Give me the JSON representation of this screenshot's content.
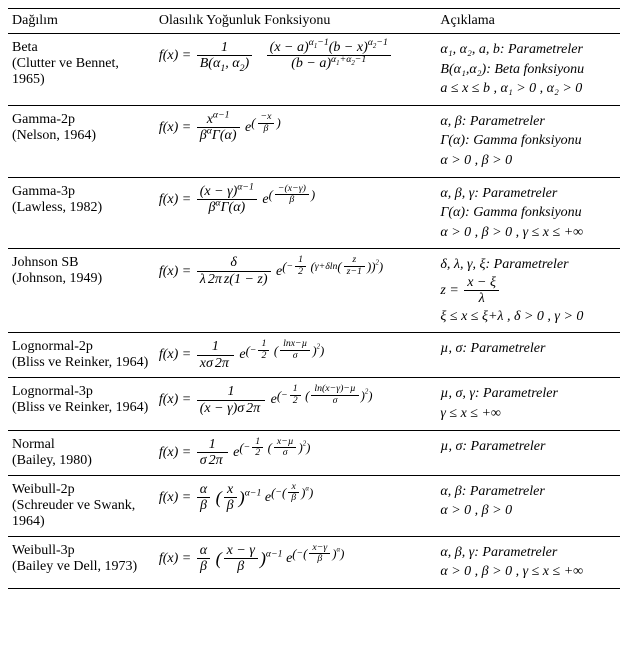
{
  "headers": {
    "dist": "Dağılım",
    "pdf": "Olasılık Yoğunluk Fonksiyonu",
    "note": "Açıklama"
  },
  "rows": [
    {
      "name": "Beta",
      "ref": "(Clutter ve Bennet, 1965)",
      "note1": "α₁, α₂, a, b: Parametreler",
      "note2": "B(α₁,α₂): Beta fonksiyonu",
      "note3": "a ≤ x ≤ b , α₁ > 0 , α₂ > 0"
    },
    {
      "name": "Gamma-2p",
      "ref": "(Nelson, 1964)",
      "note1": "α, β: Parametreler",
      "note2": "Γ(α): Gamma fonksiyonu",
      "note3": "α > 0 , β > 0"
    },
    {
      "name": "Gamma-3p",
      "ref": "(Lawless, 1982)",
      "note1": "α, β, γ: Parametreler",
      "note2": "Γ(α): Gamma fonksiyonu",
      "note3": "α > 0 , β > 0 , γ ≤ x ≤ +∞"
    },
    {
      "name": "Johnson SB",
      "ref": "(Johnson, 1949)",
      "note1": "δ, λ, γ, ξ: Parametreler",
      "note2_prefix": "z = ",
      "note2_num": "x − ξ",
      "note2_den": "λ",
      "note3": "ξ ≤ x ≤ ξ+λ , δ > 0 , γ > 0"
    },
    {
      "name": "Lognormal-2p",
      "ref": "(Bliss ve Reinker, 1964)",
      "note1": "µ, σ: Parametreler",
      "note2": "",
      "note3": ""
    },
    {
      "name": "Lognormal-3p",
      "ref": "(Bliss ve Reinker, 1964)",
      "note1": "µ, σ, γ: Parametreler",
      "note2": "γ ≤ x ≤ +∞",
      "note3": ""
    },
    {
      "name": "Normal",
      "ref": "(Bailey, 1980)",
      "note1": "µ, σ: Parametreler",
      "note2": "",
      "note3": ""
    },
    {
      "name": "Weibull-2p",
      "ref": "(Schreuder ve Swank, 1964)",
      "note1": "α, β: Parametreler",
      "note2": "α > 0 , β > 0",
      "note3": ""
    },
    {
      "name": "Weibull-3p",
      "ref": "(Bailey ve Dell, 1973)",
      "note1": "α, β, γ: Parametreler",
      "note2": "α > 0 , β > 0 , γ ≤ x ≤ +∞",
      "note3": ""
    }
  ],
  "style": {
    "font_family": "Times New Roman",
    "font_size_pt": 11,
    "border_color": "#000000",
    "background": "#ffffff",
    "col_widths_pct": [
      24,
      46,
      30
    ]
  }
}
